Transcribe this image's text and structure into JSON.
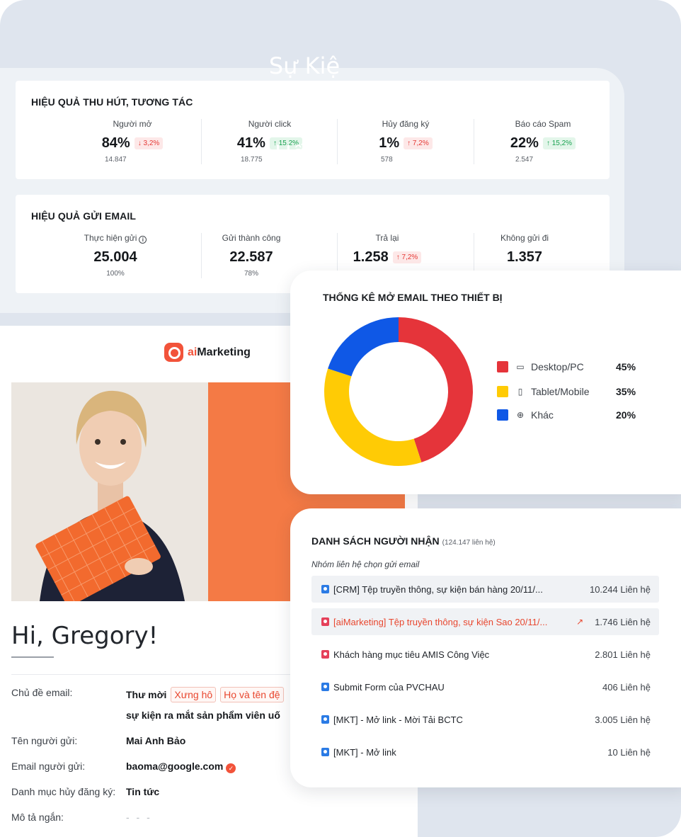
{
  "engagement": {
    "title": "HIỆU QUẢ THU HÚT, TƯƠNG TÁC",
    "metrics": [
      {
        "label": "Người mở",
        "value": "84%",
        "change": "↓ 3,2%",
        "sub": "14.847"
      },
      {
        "label": "Người click",
        "value": "41%",
        "change": "↑ 15,2%",
        "sub": "18.775"
      },
      {
        "label": "Hủy đăng ký",
        "value": "1%",
        "change": "↑ 7,2%",
        "sub": "578"
      },
      {
        "label": "Báo cáo Spam",
        "value": "22%",
        "change": "↑ 15,2%",
        "sub": "2.547"
      }
    ]
  },
  "sending": {
    "title": "HIỆU QUẢ GỬI EMAIL",
    "metrics": [
      {
        "label": "Thực hiện gửi",
        "value": "25.004",
        "sub": "100%"
      },
      {
        "label": "Gửi thành công",
        "value": "22.587",
        "sub": "78%"
      },
      {
        "label": "Trả lại",
        "value": "1.258",
        "change": "↑ 7,2%"
      },
      {
        "label": "Không gửi đi",
        "value": "1.357"
      }
    ]
  },
  "email": {
    "logo_prefix": "ai",
    "logo_name": "Marketing",
    "hero_text": "Sự Kiệ\nSản Ph\nUống",
    "greeting": "Hi, Gregory!",
    "fields": {
      "subject_label": "Chủ đề email:",
      "subject_prefix": "Thư mời",
      "subject_tag1": "Xưng hô",
      "subject_tag2": "Họ và tên đệ",
      "subject_line2": "sự kiện ra mắt sản phẩm viên uố",
      "sender_label": "Tên người gửi:",
      "sender_value": "Mai Anh Bảo",
      "sender_email_label": "Email người gửi:",
      "sender_email_value": "baoma@google.com",
      "unsub_label": "Danh mục hủy đăng ký:",
      "unsub_value": "Tin tức",
      "desc_label": "Mô tả ngắn:",
      "desc_value": "- - -"
    }
  },
  "device_chart": {
    "title": "THỐNG KÊ MỞ EMAIL THEO THIẾT BỊ"
  },
  "chart_data": {
    "type": "pie",
    "title": "THỐNG KÊ MỞ EMAIL THEO THIẾT BỊ",
    "categories": [
      "Desktop/PC",
      "Tablet/Mobile",
      "Khác"
    ],
    "values": [
      45,
      35,
      20
    ],
    "display_values": [
      "45%",
      "35%",
      "20%"
    ],
    "colors": [
      "#e5343a",
      "#ffcb05",
      "#0f58e6"
    ],
    "icons": [
      "monitor-icon",
      "mobile-icon",
      "globe-icon"
    ],
    "donut": true,
    "legend": "right"
  },
  "recipients": {
    "title": "DANH SÁCH NGƯỜI NHẬN",
    "total": "(124.147 liên hệ)",
    "subtitle": "Nhóm liên hệ chọn gửi email",
    "rows": [
      {
        "name": "[CRM] Tệp truyền thông, sự kiện bán hàng 20/11/...",
        "count": "10.244 Liên hệ",
        "icon": "blue"
      },
      {
        "name": "[aiMarketing] Tệp truyền thông, sự kiện Sao  20/11/...",
        "count": "1.746 Liên hệ",
        "icon": "red"
      },
      {
        "name": "Khách hàng mục tiêu AMIS Công Việc",
        "count": "2.801 Liên hệ",
        "icon": "red"
      },
      {
        "name": "Submit Form của PVCHAU",
        "count": "406 Liên hệ",
        "icon": "blue"
      },
      {
        "name": "[MKT] - Mở link - Mời Tải BCTC",
        "count": "3.005 Liên hệ",
        "icon": "blue"
      },
      {
        "name": "[MKT] - Mở link",
        "count": "10 Liên hệ",
        "icon": "blue"
      }
    ]
  }
}
